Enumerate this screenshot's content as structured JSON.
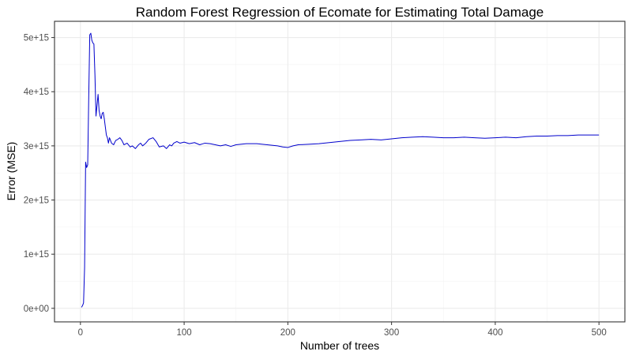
{
  "chart_data": {
    "type": "line",
    "title": "Random Forest Regression of Ecomate for Estimating Total Damage",
    "xlabel": "Number of trees",
    "ylabel": "Error (MSE)",
    "xlim": [
      0,
      500
    ],
    "ylim": [
      0,
      5000000000000000.0
    ],
    "grid": true,
    "x_ticks": [
      {
        "value": 0,
        "label": "0"
      },
      {
        "value": 100,
        "label": "100"
      },
      {
        "value": 200,
        "label": "200"
      },
      {
        "value": 300,
        "label": "300"
      },
      {
        "value": 400,
        "label": "400"
      },
      {
        "value": 500,
        "label": "500"
      }
    ],
    "y_ticks": [
      {
        "value": 0,
        "label": "0e+00"
      },
      {
        "value": 1000000000000000.0,
        "label": "1e+15"
      },
      {
        "value": 2000000000000000.0,
        "label": "2e+15"
      },
      {
        "value": 3000000000000000.0,
        "label": "3e+15"
      },
      {
        "value": 4000000000000000.0,
        "label": "4e+15"
      },
      {
        "value": 5000000000000000.0,
        "label": "5e+15"
      }
    ],
    "series": [
      {
        "color": "#0000cc",
        "x": [
          1,
          2,
          3,
          4,
          5,
          6,
          7,
          8,
          9,
          10,
          11,
          12,
          13,
          14,
          15,
          16,
          17,
          18,
          19,
          20,
          21,
          22,
          23,
          24,
          25,
          26,
          27,
          28,
          30,
          32,
          34,
          36,
          38,
          40,
          42,
          45,
          48,
          50,
          53,
          56,
          58,
          60,
          63,
          66,
          70,
          73,
          76,
          80,
          83,
          86,
          88,
          90,
          93,
          96,
          100,
          105,
          110,
          115,
          120,
          125,
          130,
          135,
          140,
          145,
          150,
          160,
          170,
          180,
          190,
          195,
          200,
          205,
          210,
          220,
          230,
          240,
          250,
          260,
          270,
          280,
          290,
          300,
          310,
          320,
          330,
          340,
          350,
          360,
          370,
          380,
          390,
          400,
          410,
          420,
          430,
          440,
          450,
          460,
          470,
          480,
          490,
          500
        ],
        "values": [
          20000000000000.0,
          50000000000000.0,
          100000000000000.0,
          750000000000000.0,
          2700000000000000.0,
          2600000000000000.0,
          2650000000000000.0,
          3900000000000000.0,
          5050000000000000.0,
          5080000000000000.0,
          4950000000000000.0,
          4900000000000000.0,
          4880000000000000.0,
          4300000000000000.0,
          3550000000000000.0,
          3750000000000000.0,
          3950000000000000.0,
          3650000000000000.0,
          3550000000000000.0,
          3500000000000000.0,
          3600000000000000.0,
          3620000000000000.0,
          3500000000000000.0,
          3350000000000000.0,
          3200000000000000.0,
          3150000000000000.0,
          3050000000000000.0,
          3150000000000000.0,
          3050000000000000.0,
          3020000000000000.0,
          3100000000000000.0,
          3120000000000000.0,
          3150000000000000.0,
          3100000000000000.0,
          3020000000000000.0,
          3050000000000000.0,
          2980000000000000.0,
          3000000000000000.0,
          2950000000000000.0,
          3020000000000000.0,
          3050000000000000.0,
          3000000000000000.0,
          3050000000000000.0,
          3120000000000000.0,
          3150000000000000.0,
          3080000000000000.0,
          2980000000000000.0,
          3000000000000000.0,
          2950000000000000.0,
          3020000000000000.0,
          3000000000000000.0,
          3050000000000000.0,
          3080000000000000.0,
          3050000000000000.0,
          3070000000000000.0,
          3040000000000000.0,
          3060000000000000.0,
          3020000000000000.0,
          3050000000000000.0,
          3040000000000000.0,
          3020000000000000.0,
          3000000000000000.0,
          3020000000000000.0,
          2990000000000000.0,
          3020000000000000.0,
          3040000000000000.0,
          3040000000000000.0,
          3020000000000000.0,
          3000000000000000.0,
          2980000000000000.0,
          2970000000000000.0,
          3000000000000000.0,
          3020000000000000.0,
          3030000000000000.0,
          3040000000000000.0,
          3060000000000000.0,
          3080000000000000.0,
          3100000000000000.0,
          3110000000000000.0,
          3120000000000000.0,
          3110000000000000.0,
          3130000000000000.0,
          3150000000000000.0,
          3160000000000000.0,
          3170000000000000.0,
          3160000000000000.0,
          3150000000000000.0,
          3150000000000000.0,
          3160000000000000.0,
          3150000000000000.0,
          3140000000000000.0,
          3150000000000000.0,
          3160000000000000.0,
          3150000000000000.0,
          3170000000000000.0,
          3180000000000000.0,
          3180000000000000.0,
          3190000000000000.0,
          3190000000000000.0,
          3200000000000000.0,
          3200000000000000.0,
          3200000000000000.0
        ]
      }
    ]
  }
}
